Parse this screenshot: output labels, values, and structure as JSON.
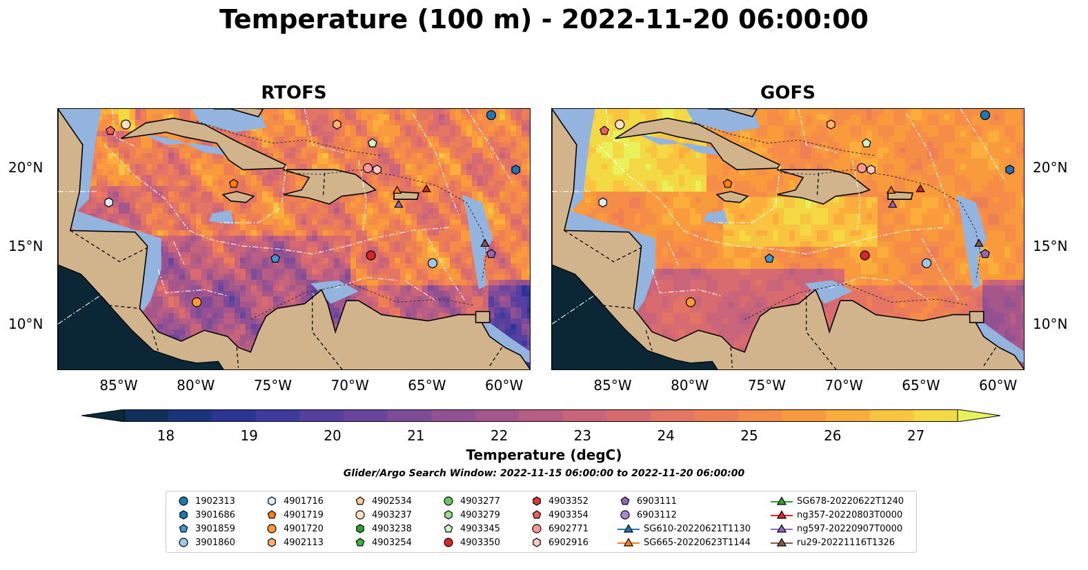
{
  "title": "Temperature (100 m) - 2022-11-20 06:00:00",
  "panels": [
    {
      "title": "RTOFS",
      "key": "rtofs"
    },
    {
      "title": "GOFS",
      "key": "gofs"
    }
  ],
  "x_ticks": [
    "85°W",
    "80°W",
    "75°W",
    "70°W",
    "65°W",
    "60°W"
  ],
  "y_ticks": [
    "20°N",
    "15°N",
    "10°N"
  ],
  "colorbar": {
    "label": "Temperature (degC)",
    "ticks": [
      "18",
      "19",
      "20",
      "21",
      "22",
      "23",
      "24",
      "25",
      "26",
      "27"
    ],
    "min": 18,
    "max": 27,
    "step": 0.5,
    "extend": "both",
    "colors": [
      "#0a2a3a",
      "#10305a",
      "#1b357d",
      "#2c3596",
      "#3f3a9e",
      "#553f9f",
      "#6a459d",
      "#7e4b99",
      "#925193",
      "#a5578c",
      "#b85d84",
      "#c9647b",
      "#d86b70",
      "#e47463",
      "#ee7f55",
      "#f58c47",
      "#f99b3d",
      "#fbae3b",
      "#f9c440",
      "#f3da45",
      "#e8f05a"
    ]
  },
  "search_window": "Glider/Argo Search Window: 2022-11-15 06:00:00 to 2022-11-20 06:00:00",
  "colors": {
    "land": "#d2b48c",
    "shelf": "#94b4e0",
    "deep_land": "#0b2735"
  },
  "legend": [
    {
      "label": "1902313",
      "marker": "circle",
      "color": "#1f77b4"
    },
    {
      "label": "3901686",
      "marker": "hexagon",
      "color": "#1f77b4"
    },
    {
      "label": "3901859",
      "marker": "pentagon",
      "color": "#3f95d6"
    },
    {
      "label": "3901860",
      "marker": "circle",
      "color": "#9dc8ec"
    },
    {
      "label": "4901716",
      "marker": "hexagon",
      "color": "#dceefb"
    },
    {
      "label": "4901719",
      "marker": "pentagon",
      "color": "#ff7f0e"
    },
    {
      "label": "4901720",
      "marker": "circle",
      "color": "#ff9933"
    },
    {
      "label": "4902113",
      "marker": "hexagon",
      "color": "#ffb26b"
    },
    {
      "label": "4902534",
      "marker": "pentagon",
      "color": "#ffc999"
    },
    {
      "label": "4903237",
      "marker": "circle",
      "color": "#ffe0c2"
    },
    {
      "label": "4903238",
      "marker": "hexagon",
      "color": "#2ca02c"
    },
    {
      "label": "4903254",
      "marker": "pentagon",
      "color": "#3cb53c"
    },
    {
      "label": "4903277",
      "marker": "circle",
      "color": "#66c466"
    },
    {
      "label": "4903279",
      "marker": "hexagon",
      "color": "#98df8a"
    },
    {
      "label": "4903345",
      "marker": "pentagon",
      "color": "#cdf2c2"
    },
    {
      "label": "4903350",
      "marker": "circle",
      "color": "#d62728"
    },
    {
      "label": "4903352",
      "marker": "hexagon",
      "color": "#d8383a"
    },
    {
      "label": "4903354",
      "marker": "pentagon",
      "color": "#eb5f61"
    },
    {
      "label": "6902771",
      "marker": "circle",
      "color": "#ff9896"
    },
    {
      "label": "6902916",
      "marker": "hexagon",
      "color": "#ffc7c6"
    },
    {
      "label": "6903111",
      "marker": "pentagon",
      "color": "#9467bd"
    },
    {
      "label": "6903112",
      "marker": "circle",
      "color": "#a987d1"
    },
    {
      "label": "SG610-20220621T1130",
      "marker": "triangle-line",
      "color": "#1f77b4"
    },
    {
      "label": "SG665-20220623T1144",
      "marker": "triangle-line",
      "color": "#ff7f0e"
    },
    {
      "label": "SG678-20220622T1240",
      "marker": "triangle-line",
      "color": "#2ca02c"
    },
    {
      "label": "ng357-20220803T0000",
      "marker": "triangle-line",
      "color": "#d62728"
    },
    {
      "label": "ng597-20220907T0000",
      "marker": "triangle-line",
      "color": "#9467bd"
    },
    {
      "label": "ru29-20221116T1326",
      "marker": "triangle-line",
      "color": "#8c564b"
    }
  ],
  "map_points": [
    {
      "id": "1902313",
      "lon": -60.9,
      "lat": 23.4
    },
    {
      "id": "3901686",
      "lon": -59.3,
      "lat": 19.9
    },
    {
      "id": "3901859",
      "lon": -74.9,
      "lat": 14.2
    },
    {
      "id": "3901860",
      "lon": -64.7,
      "lat": 13.9
    },
    {
      "id": "4901716",
      "lon": -85.7,
      "lat": 17.8
    },
    {
      "id": "4901719",
      "lon": -77.6,
      "lat": 19.0
    },
    {
      "id": "4901720",
      "lon": -80.0,
      "lat": 11.4
    },
    {
      "id": "4902113",
      "lon": -70.9,
      "lat": 22.8
    },
    {
      "id": "4903237",
      "lon": -84.6,
      "lat": 22.8
    },
    {
      "id": "4903345",
      "lon": -68.6,
      "lat": 21.6
    },
    {
      "id": "4903350",
      "lon": -68.7,
      "lat": 14.4
    },
    {
      "id": "4903354",
      "lon": -85.6,
      "lat": 22.4
    },
    {
      "id": "6902771",
      "lon": -68.9,
      "lat": 20.0
    },
    {
      "id": "6902916",
      "lon": -68.3,
      "lat": 19.9
    },
    {
      "id": "6903111",
      "lon": -60.9,
      "lat": 14.5
    },
    {
      "id": "SG665-20220623T1144",
      "lon": -67.0,
      "lat": 18.6
    },
    {
      "id": "ng357-20220803T0000",
      "lon": -65.1,
      "lat": 18.7
    },
    {
      "id": "ng597-20220907T0000",
      "lon": -66.9,
      "lat": 17.7
    },
    {
      "id": "ru29-20221116T1326",
      "lon": -61.3,
      "lat": 15.2
    }
  ],
  "map_extent": {
    "lon": [
      -89,
      -58.3
    ],
    "lat": [
      7,
      23.8
    ]
  }
}
